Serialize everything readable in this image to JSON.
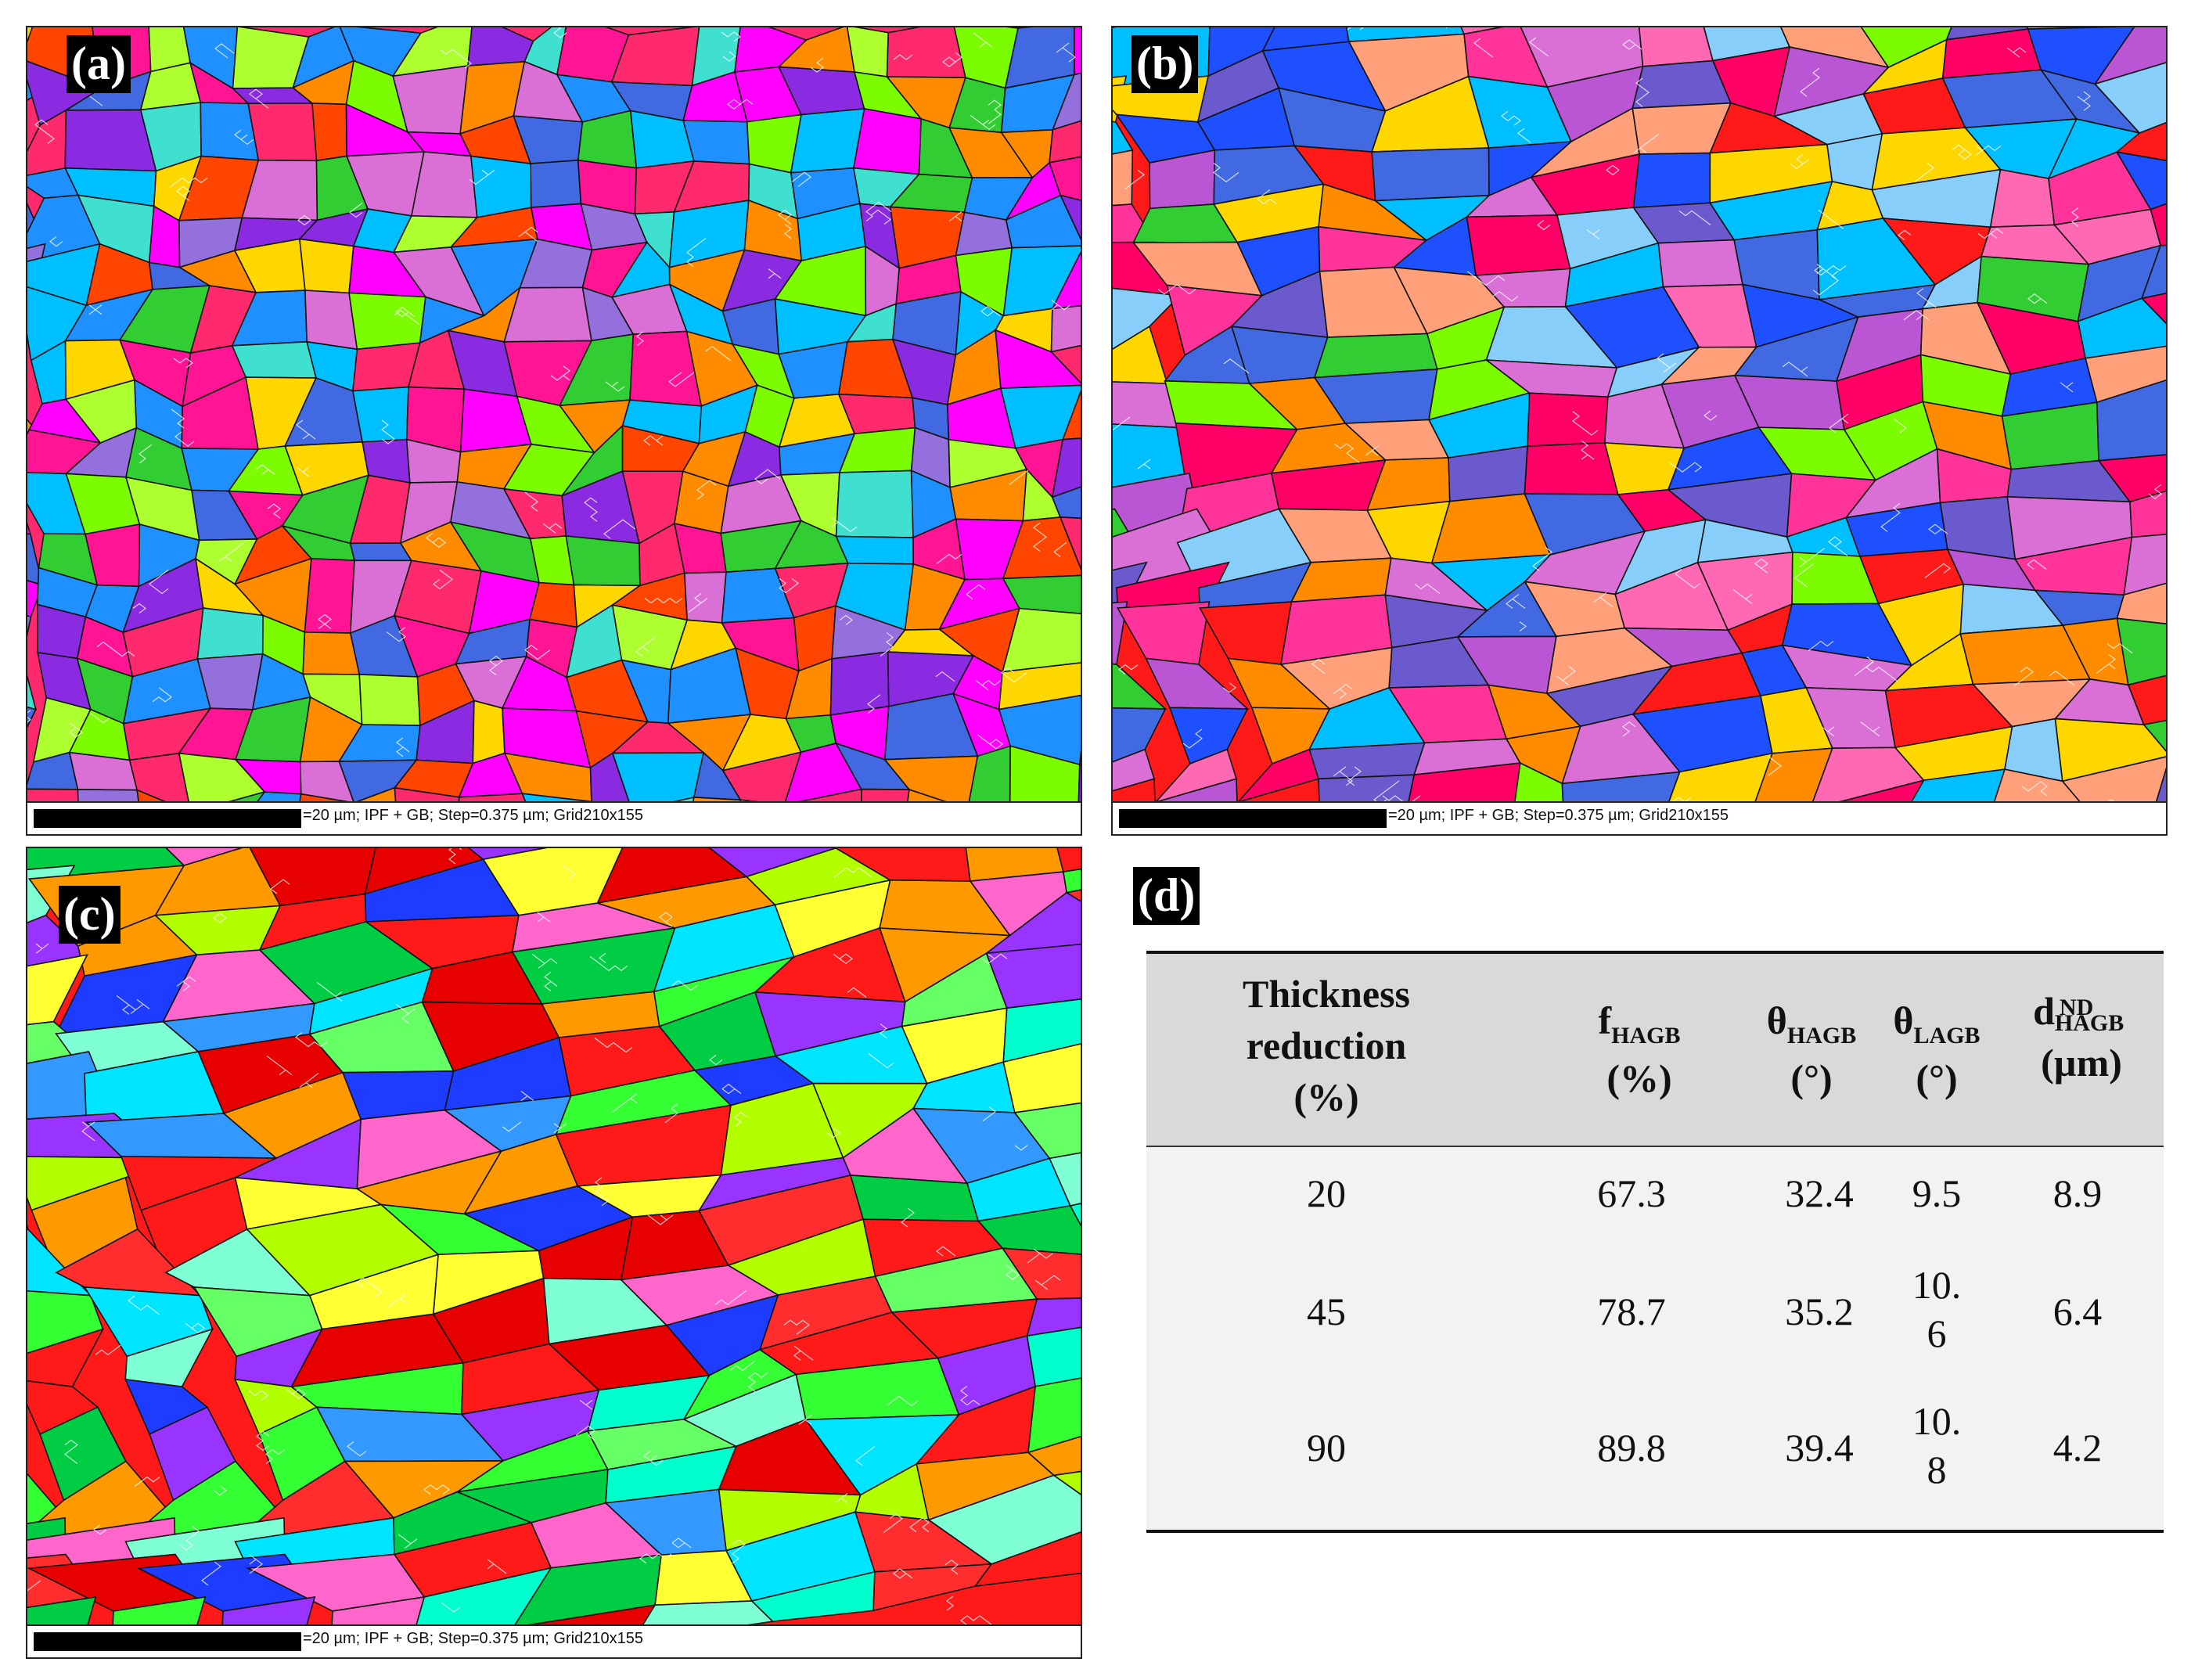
{
  "panels": [
    {
      "label": "(a)",
      "scale_text": "=20 µm; IPF + GB; Step=0.375 µm; Grid210x155",
      "palette": [
        "#ff2a6d",
        "#8a2be2",
        "#7cfc00",
        "#00bfff",
        "#ff8c00",
        "#ff1493",
        "#1e90ff",
        "#adff2f",
        "#ff00ff",
        "#4169e1",
        "#32cd32",
        "#ff4500",
        "#da70d6",
        "#40e0d0",
        "#ffd700",
        "#9370db"
      ]
    },
    {
      "label": "(b)",
      "scale_text": "=20 µm; IPF + GB; Step=0.375 µm; Grid210x155",
      "palette": [
        "#ff1a1a",
        "#ff3399",
        "#6a5acd",
        "#7cfc00",
        "#00bfff",
        "#ff69b4",
        "#1e50ff",
        "#ff8c00",
        "#87cefa",
        "#da70d6",
        "#32cd32",
        "#ff0066",
        "#ba55d3",
        "#ffa07a",
        "#4169e1",
        "#ffd700"
      ]
    },
    {
      "label": "(c)",
      "scale_text": "=20 µm; IPF + GB; Step=0.375 µm; Grid210x155",
      "palette": [
        "#ff1a1a",
        "#33ff33",
        "#00e5ff",
        "#1e3cff",
        "#ff2d2d",
        "#66ff66",
        "#7fffd4",
        "#ff66cc",
        "#b3ff00",
        "#e60000",
        "#00cc44",
        "#3399ff",
        "#ff9900",
        "#9933ff",
        "#00ffcc",
        "#ffff33"
      ]
    }
  ],
  "table_label": "(d)",
  "table": {
    "headers": {
      "col1_lines": [
        "Thickness",
        "reduction",
        "(%)"
      ],
      "f": {
        "main": "f",
        "sub": "HAGB",
        "unit": "(%)"
      },
      "th_h": {
        "main": "θ",
        "sub": "HAGB",
        "unit": "(°)"
      },
      "th_l": {
        "main": "θ",
        "sub": "LAGB",
        "unit": "(°)"
      },
      "d": {
        "main": "d",
        "sub": "HAGB",
        "sup": "ND",
        "unit": "(µm)"
      }
    },
    "rows": [
      {
        "reduction": "20",
        "f": "67.3",
        "th_h": "32.4",
        "th_l_1": "9.5",
        "th_l_2": "",
        "d": "8.9"
      },
      {
        "reduction": "45",
        "f": "78.7",
        "th_h": "35.2",
        "th_l_1": "10.",
        "th_l_2": "6",
        "d": "6.4"
      },
      {
        "reduction": "90",
        "f": "89.8",
        "th_h": "39.4",
        "th_l_1": "10.",
        "th_l_2": "8",
        "d": "4.2"
      }
    ]
  }
}
